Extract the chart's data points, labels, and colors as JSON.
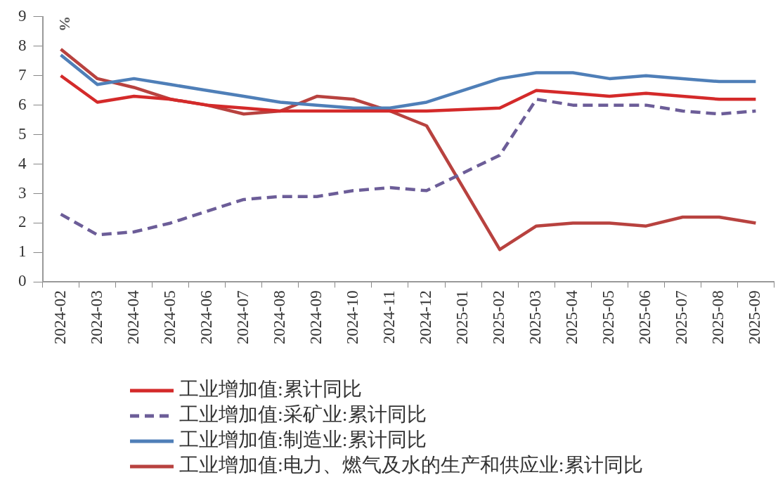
{
  "chart_data": {
    "type": "line",
    "ylabel": "%",
    "categories": [
      "2024-02",
      "2024-03",
      "2024-04",
      "2024-05",
      "2024-06",
      "2024-07",
      "2024-08",
      "2024-09",
      "2024-10",
      "2024-11",
      "2024-12",
      "2025-01",
      "2025-02",
      "2025-03",
      "2025-04",
      "2025-05",
      "2025-06",
      "2025-07",
      "2025-08",
      "2025-09"
    ],
    "series": [
      {
        "name": "工业增加值:累计同比",
        "color": "#d42a2a",
        "values": [
          7.0,
          6.1,
          6.3,
          6.2,
          6.0,
          5.9,
          5.8,
          5.8,
          5.8,
          5.8,
          5.8,
          null,
          5.9,
          6.5,
          6.4,
          6.3,
          6.4,
          6.3,
          6.2,
          6.2
        ]
      },
      {
        "name": "工业增加值:采矿业:累计同比",
        "color": "#6c5d98",
        "line_style": "dashed",
        "values": [
          2.3,
          1.6,
          1.7,
          2.0,
          2.4,
          2.8,
          2.9,
          2.9,
          3.1,
          3.2,
          3.1,
          null,
          4.3,
          6.2,
          6.0,
          6.0,
          6.0,
          5.8,
          5.7,
          5.8
        ]
      },
      {
        "name": "工业增加值:制造业:累计同比",
        "color": "#4f7fb8",
        "values": [
          7.7,
          6.7,
          6.9,
          6.7,
          6.5,
          6.3,
          6.1,
          6.0,
          5.9,
          5.9,
          6.1,
          null,
          6.9,
          7.1,
          7.1,
          6.9,
          7.0,
          6.9,
          6.8,
          6.8
        ]
      },
      {
        "name": "工业增加值:电力、燃气及水的生产和供应业:累计同比",
        "color": "#b8423f",
        "values": [
          7.9,
          6.9,
          6.6,
          6.2,
          6.0,
          5.7,
          5.8,
          6.3,
          6.2,
          5.8,
          5.3,
          null,
          1.1,
          1.9,
          2.0,
          2.0,
          1.9,
          2.2,
          2.2,
          2.0
        ]
      }
    ],
    "ylim": [
      0,
      9
    ],
    "yticks": [
      0,
      1,
      2,
      3,
      4,
      5,
      6,
      7,
      8,
      9
    ],
    "grid": false,
    "legend": "bottom",
    "marker": "none",
    "line_style": "solid"
  }
}
